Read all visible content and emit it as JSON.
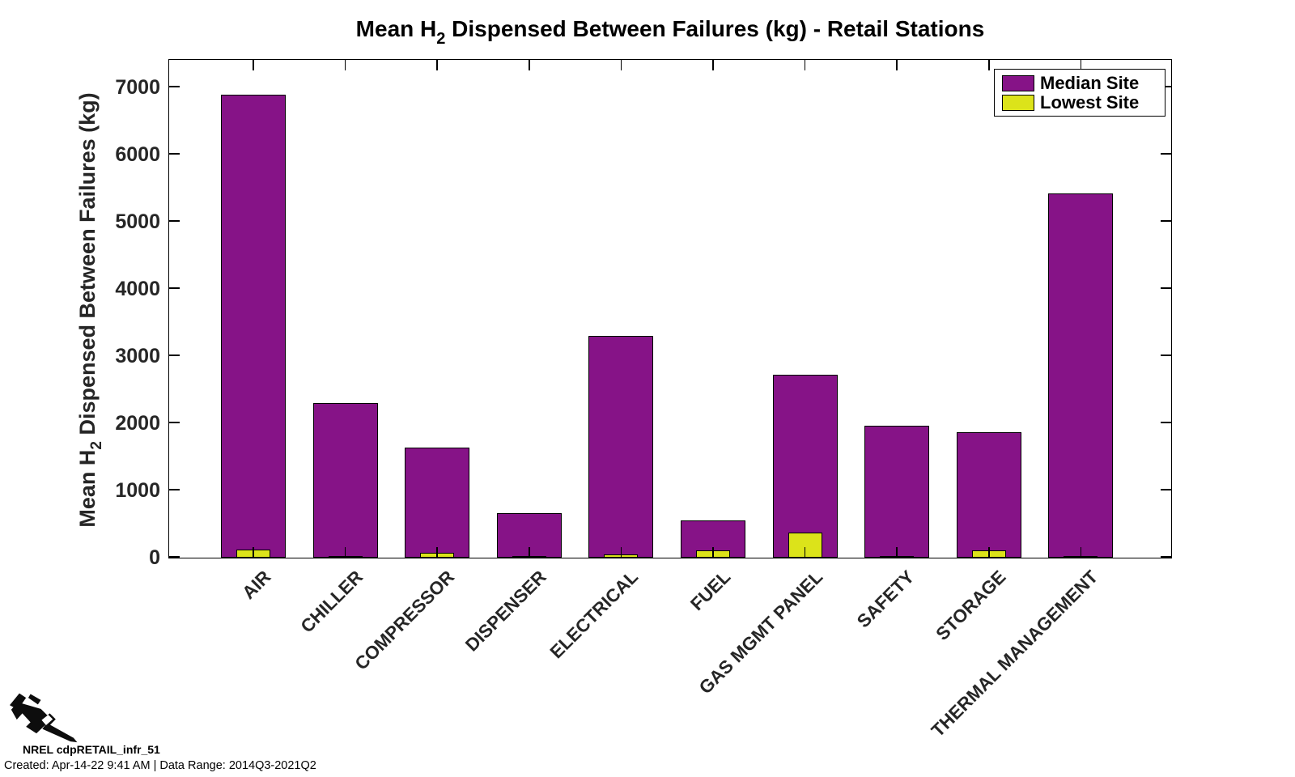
{
  "title": {
    "prefix": "Mean H",
    "sub": "2",
    "suffix": " Dispensed Between Failures (kg) - Retail Stations"
  },
  "y_axis": {
    "label_prefix": "Mean H",
    "label_sub": "2",
    "label_suffix": " Dispensed Between Failures (kg)"
  },
  "legend": {
    "position": "top-right",
    "entries": [
      {
        "label": "Median Site",
        "color": "#861387"
      },
      {
        "label": "Lowest Site",
        "color": "#DCE31A"
      }
    ]
  },
  "chart_data": {
    "type": "bar",
    "title": "Mean H2 Dispensed Between Failures (kg) - Retail Stations",
    "ylabel": "Mean H2 Dispensed Between Failures (kg)",
    "xlabel": "",
    "categories": [
      "AIR",
      "CHILLER",
      "COMPRESSOR",
      "DISPENSER",
      "ELECTRICAL",
      "FUEL",
      "GAS MGMT PANEL",
      "SAFETY",
      "STORAGE",
      "THERMAL MANAGEMENT"
    ],
    "series": [
      {
        "name": "Median Site",
        "color": "#861387",
        "style": "full-width",
        "values": [
          6900,
          2300,
          1640,
          660,
          3300,
          560,
          2720,
          1960,
          1870,
          5420
        ]
      },
      {
        "name": "Lowest Site",
        "color": "#DCE31A",
        "style": "overlay-half-width",
        "values": [
          120,
          20,
          70,
          15,
          50,
          110,
          370,
          15,
          110,
          30
        ]
      }
    ],
    "ylim": [
      0,
      7400
    ],
    "yticks": [
      0,
      1000,
      2000,
      3000,
      4000,
      5000,
      6000,
      7000
    ],
    "grid": false,
    "legend_position": "top-right",
    "bar_edge_color": "#000000",
    "x_tick_label_rotation": 45
  },
  "footer": {
    "logo": "h2-dispenser-nozzle",
    "dataset_id": "NREL cdpRETAIL_infr_51",
    "created_line": "Created: Apr-14-22  9:41 AM | Data Range: 2014Q3-2021Q2"
  }
}
